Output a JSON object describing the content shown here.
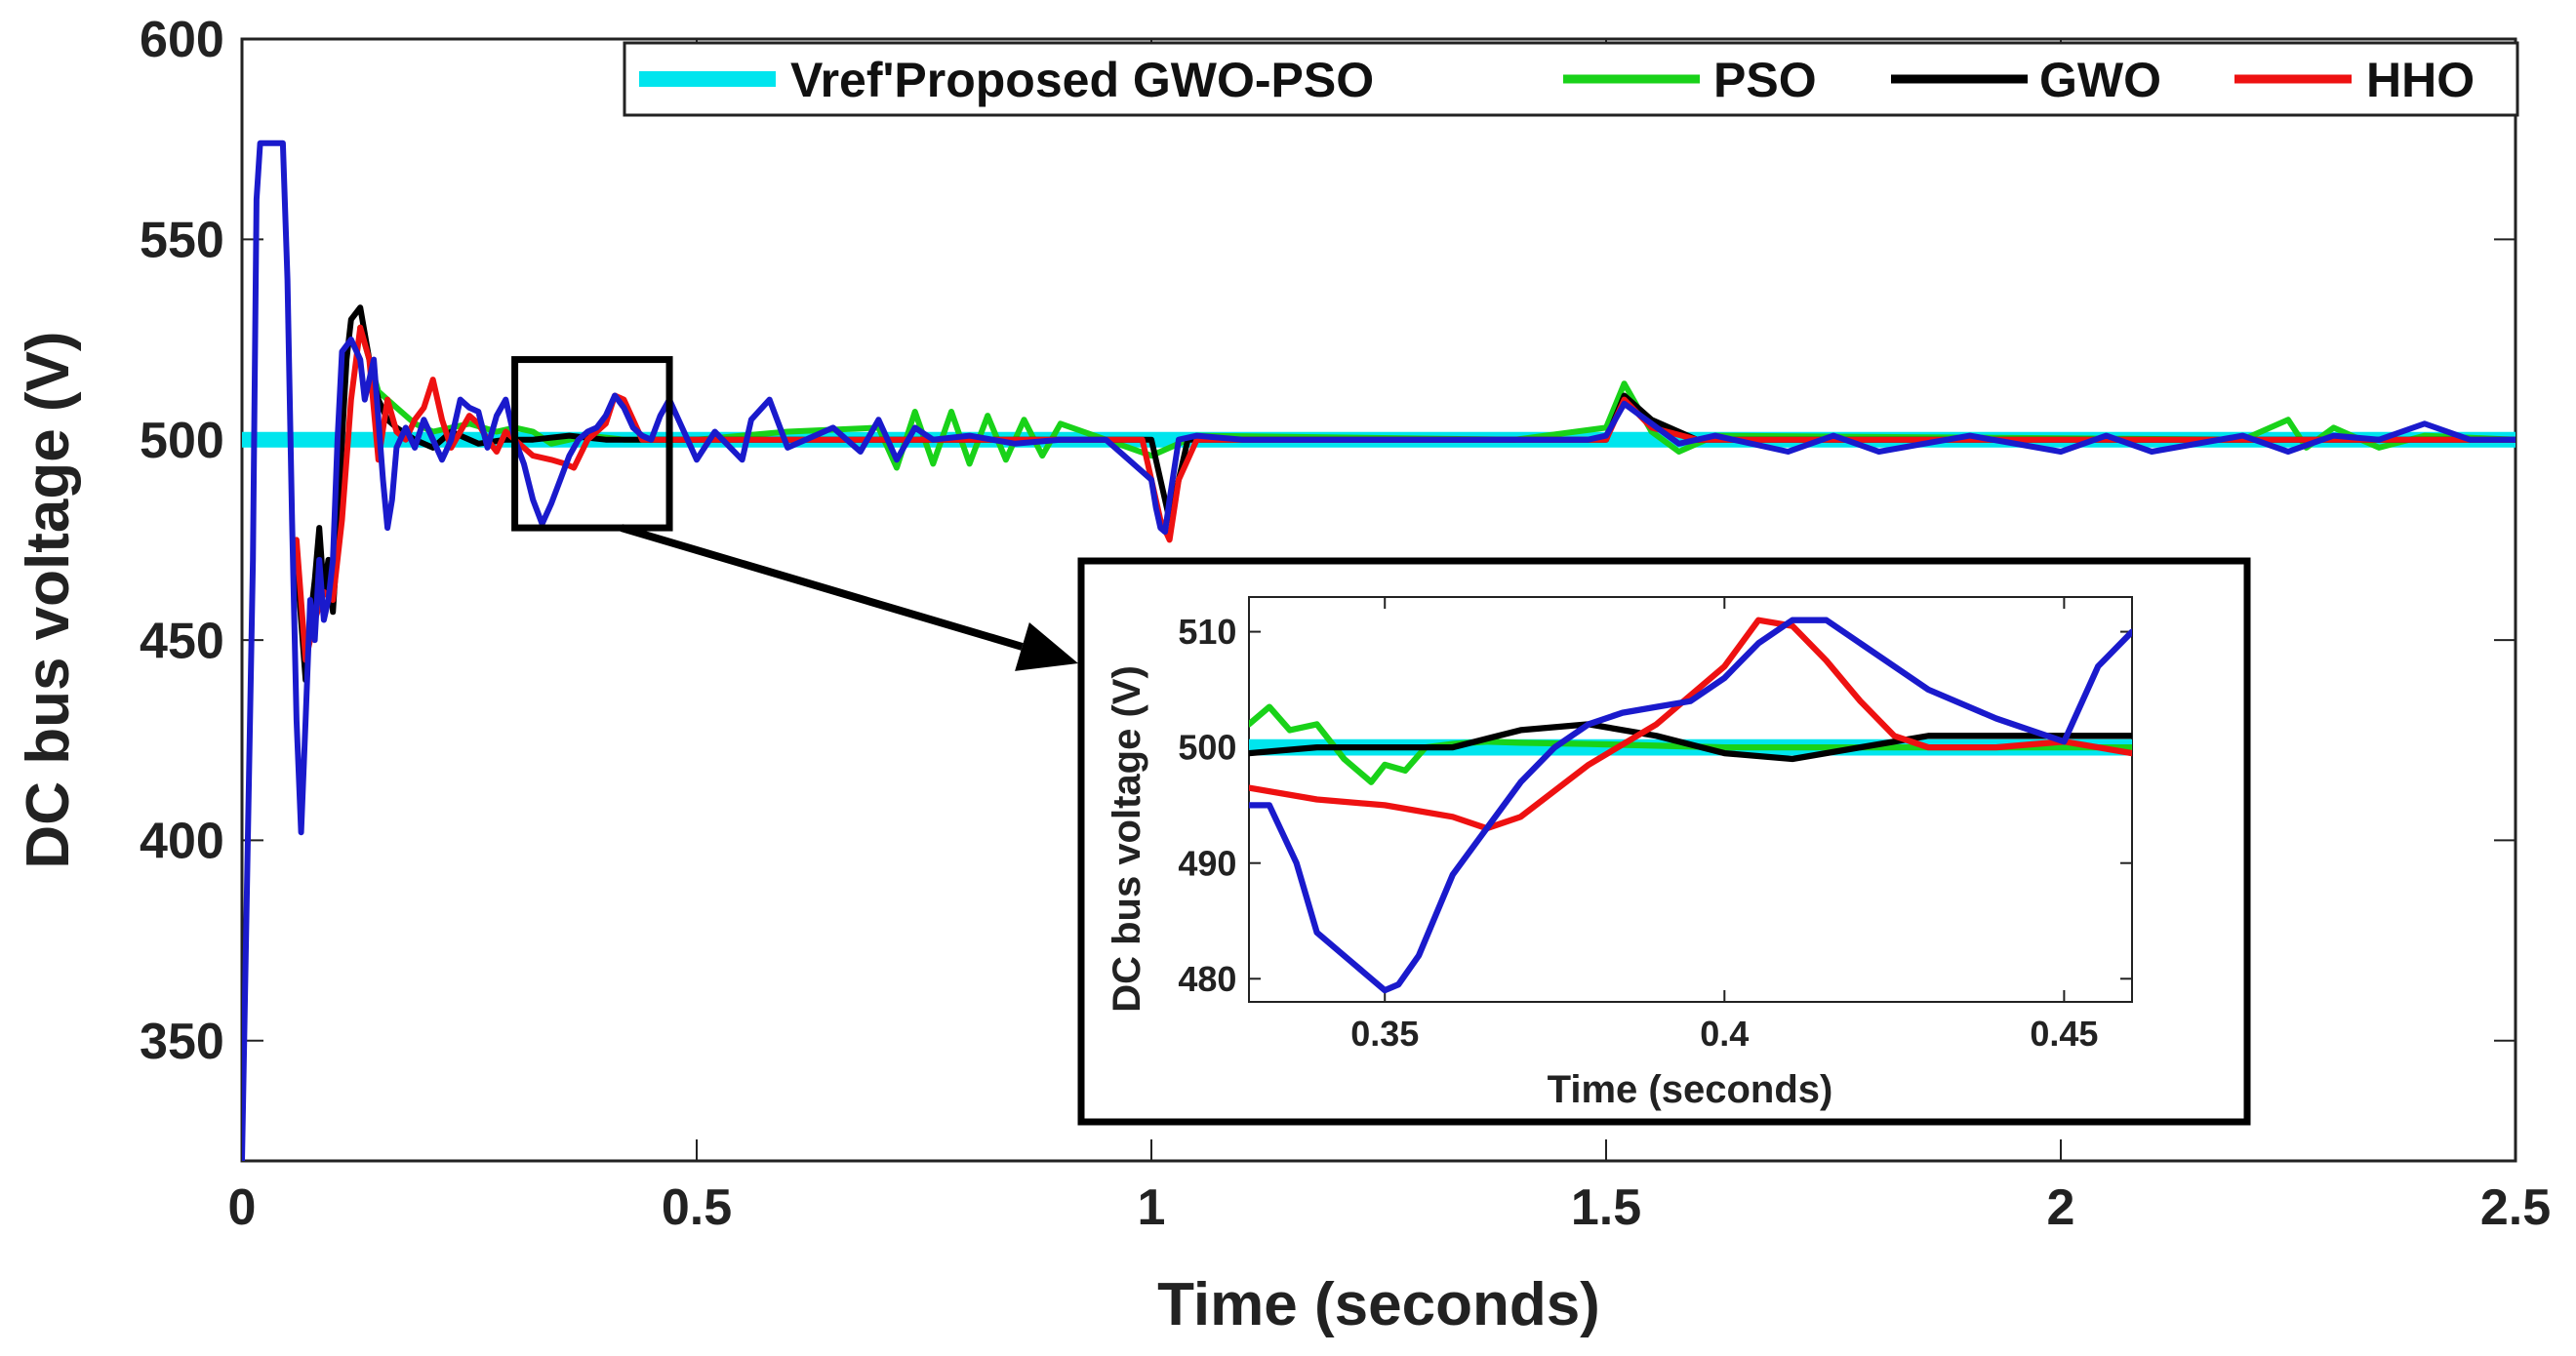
{
  "chart_data": {
    "type": "line",
    "xlabel": "Time (seconds)",
    "ylabel": "DC bus voltage (V)",
    "xlim": [
      0,
      2.5
    ],
    "ylim": [
      320,
      600
    ],
    "xticks": [
      0,
      0.5,
      1,
      1.5,
      2,
      2.5
    ],
    "xtick_labels": [
      "0",
      "0.5",
      "1",
      "1.5",
      "2",
      "2.5"
    ],
    "yticks": [
      350,
      400,
      450,
      500,
      550,
      600
    ],
    "ytick_labels": [
      "350",
      "400",
      "450",
      "500",
      "550",
      "600"
    ],
    "legend_position": "top-right",
    "legend": [
      "Vref'Proposed GWO-PSO",
      "PSO",
      "GWO",
      "HHO"
    ],
    "series": [
      {
        "name": "Vref",
        "color": "#00e5ee",
        "x": [
          0,
          2.5
        ],
        "y": [
          500,
          500
        ]
      },
      {
        "name": "PSO",
        "color": "#19d219",
        "x": [
          0.13,
          0.15,
          0.17,
          0.19,
          0.21,
          0.23,
          0.25,
          0.28,
          0.3,
          0.32,
          0.34,
          0.36,
          0.38,
          0.42,
          0.5,
          0.6,
          0.7,
          0.72,
          0.74,
          0.76,
          0.78,
          0.8,
          0.82,
          0.84,
          0.86,
          0.88,
          0.9,
          0.95,
          1.0,
          1.05,
          1.4,
          1.5,
          1.52,
          1.55,
          1.58,
          1.62,
          2.2,
          2.25,
          2.27,
          2.3,
          2.35,
          2.4,
          2.5
        ],
        "y": [
          528,
          512,
          508,
          504,
          502,
          503,
          504,
          502,
          503,
          502,
          499,
          500,
          501,
          500,
          500,
          502,
          503,
          493,
          507,
          494,
          507,
          494,
          506,
          495,
          505,
          496,
          504,
          500,
          496,
          501,
          500,
          503,
          514,
          502,
          497,
          501,
          500,
          505,
          498,
          503,
          498,
          501,
          500
        ]
      },
      {
        "name": "GWO",
        "color": "#000000",
        "x": [
          0.06,
          0.07,
          0.075,
          0.08,
          0.085,
          0.09,
          0.095,
          0.1,
          0.105,
          0.11,
          0.115,
          0.12,
          0.13,
          0.14,
          0.15,
          0.16,
          0.17,
          0.19,
          0.21,
          0.23,
          0.26,
          0.29,
          0.32,
          0.36,
          0.4,
          0.45,
          0.5,
          1.0,
          1.01,
          1.02,
          1.04,
          1.1,
          1.5,
          1.52,
          1.55,
          1.6,
          2.5
        ],
        "y": [
          470,
          440,
          455,
          465,
          478,
          462,
          470,
          457,
          475,
          500,
          520,
          530,
          533,
          520,
          510,
          505,
          503,
          500,
          498,
          502,
          499,
          500,
          500,
          501,
          500,
          500,
          500,
          500,
          490,
          480,
          500,
          500,
          500,
          511,
          505,
          500,
          500
        ]
      },
      {
        "name": "HHO",
        "color": "#ee1111",
        "x": [
          0.06,
          0.07,
          0.08,
          0.09,
          0.1,
          0.11,
          0.12,
          0.13,
          0.14,
          0.15,
          0.16,
          0.17,
          0.18,
          0.19,
          0.2,
          0.21,
          0.22,
          0.23,
          0.24,
          0.25,
          0.26,
          0.27,
          0.28,
          0.29,
          0.3,
          0.32,
          0.34,
          0.355,
          0.365,
          0.38,
          0.4,
          0.41,
          0.42,
          0.44,
          0.46,
          0.5,
          0.99,
          1.0,
          1.01,
          1.02,
          1.03,
          1.05,
          1.5,
          1.52,
          1.55,
          1.6,
          2.5
        ],
        "y": [
          475,
          445,
          455,
          462,
          460,
          480,
          510,
          528,
          520,
          495,
          510,
          502,
          500,
          505,
          508,
          515,
          505,
          498,
          502,
          506,
          504,
          500,
          497,
          502,
          500,
          496,
          495,
          494,
          493,
          500,
          504,
          511,
          510,
          500,
          500,
          500,
          500,
          490,
          480,
          475,
          490,
          500,
          500,
          510,
          503,
          500,
          500
        ]
      },
      {
        "name": "Proposed GWO-PSO",
        "color": "#1a1acc",
        "x": [
          0.0,
          0.012,
          0.016,
          0.02,
          0.03,
          0.045,
          0.05,
          0.055,
          0.06,
          0.065,
          0.07,
          0.075,
          0.08,
          0.085,
          0.09,
          0.095,
          0.1,
          0.105,
          0.11,
          0.12,
          0.13,
          0.135,
          0.14,
          0.145,
          0.15,
          0.155,
          0.16,
          0.165,
          0.17,
          0.18,
          0.19,
          0.2,
          0.21,
          0.22,
          0.23,
          0.24,
          0.25,
          0.26,
          0.27,
          0.28,
          0.29,
          0.3,
          0.31,
          0.32,
          0.33,
          0.34,
          0.35,
          0.36,
          0.37,
          0.38,
          0.39,
          0.4,
          0.41,
          0.42,
          0.43,
          0.44,
          0.45,
          0.46,
          0.47,
          0.5,
          0.52,
          0.55,
          0.56,
          0.58,
          0.6,
          0.65,
          0.68,
          0.7,
          0.72,
          0.74,
          0.76,
          0.8,
          0.85,
          0.9,
          0.95,
          1.0,
          1.005,
          1.01,
          1.015,
          1.02,
          1.03,
          1.05,
          1.1,
          1.2,
          1.3,
          1.4,
          1.48,
          1.5,
          1.52,
          1.55,
          1.58,
          1.62,
          1.7,
          1.75,
          1.8,
          1.9,
          2.0,
          2.05,
          2.1,
          2.2,
          2.25,
          2.3,
          2.35,
          2.4,
          2.45,
          2.5
        ],
        "y": [
          320,
          470,
          560,
          574,
          574,
          574,
          540,
          480,
          430,
          402,
          430,
          460,
          450,
          470,
          455,
          460,
          470,
          500,
          522,
          525,
          520,
          510,
          515,
          520,
          505,
          490,
          478,
          485,
          498,
          503,
          498,
          505,
          500,
          495,
          500,
          510,
          508,
          507,
          498,
          506,
          510,
          500,
          494,
          485,
          479,
          484,
          490,
          496,
          500,
          502,
          503,
          506,
          511,
          508,
          503,
          501,
          500,
          506,
          510,
          495,
          502,
          495,
          505,
          510,
          498,
          503,
          497,
          505,
          495,
          503,
          500,
          501,
          499,
          500,
          500,
          490,
          483,
          478,
          477,
          485,
          500,
          501,
          500,
          500,
          500,
          500,
          500,
          501,
          509,
          504,
          499,
          501,
          497,
          501,
          497,
          501,
          497,
          501,
          497,
          501,
          497,
          501,
          500,
          504,
          500,
          500
        ]
      }
    ],
    "inset": {
      "type": "line",
      "xlabel": "Time (seconds)",
      "ylabel": "DC bus voltage (V)",
      "xlim": [
        0.33,
        0.46
      ],
      "ylim": [
        478,
        513
      ],
      "xticks": [
        0.35,
        0.4,
        0.45
      ],
      "xtick_labels": [
        "0.35",
        "0.4",
        "0.45"
      ],
      "yticks": [
        480,
        490,
        500,
        510
      ],
      "ytick_labels": [
        "480",
        "490",
        "500",
        "510"
      ],
      "zoom_region": {
        "x": [
          0.3,
          0.47
        ],
        "y": [
          478,
          520
        ]
      },
      "series": [
        {
          "name": "Vref",
          "color": "#00e5ee",
          "x": [
            0.33,
            0.46
          ],
          "y": [
            500,
            500
          ]
        },
        {
          "name": "PSO",
          "color": "#19d219",
          "x": [
            0.33,
            0.333,
            0.336,
            0.34,
            0.344,
            0.348,
            0.35,
            0.353,
            0.356,
            0.36,
            0.365,
            0.37,
            0.38,
            0.4,
            0.43,
            0.46
          ],
          "y": [
            502,
            503.5,
            501.5,
            502,
            499,
            497,
            498.5,
            498,
            500,
            500.3,
            500.5,
            500.4,
            500.3,
            500,
            500,
            500
          ]
        },
        {
          "name": "GWO",
          "color": "#000000",
          "x": [
            0.33,
            0.34,
            0.35,
            0.36,
            0.37,
            0.38,
            0.39,
            0.4,
            0.41,
            0.42,
            0.43,
            0.44,
            0.45,
            0.46
          ],
          "y": [
            499.5,
            500,
            500,
            500,
            501.5,
            502,
            501,
            499.5,
            499,
            500,
            501,
            501,
            501,
            501
          ]
        },
        {
          "name": "HHO",
          "color": "#ee1111",
          "x": [
            0.33,
            0.34,
            0.35,
            0.36,
            0.365,
            0.37,
            0.38,
            0.39,
            0.4,
            0.405,
            0.41,
            0.415,
            0.42,
            0.425,
            0.43,
            0.44,
            0.45,
            0.46
          ],
          "y": [
            496.5,
            495.5,
            495,
            494,
            493,
            494,
            498.5,
            502,
            507,
            511,
            510.5,
            507.5,
            504,
            501,
            500,
            500,
            500.5,
            499.5
          ]
        },
        {
          "name": "Proposed GWO-PSO",
          "color": "#1a1acc",
          "x": [
            0.33,
            0.333,
            0.337,
            0.34,
            0.345,
            0.35,
            0.352,
            0.355,
            0.36,
            0.365,
            0.37,
            0.375,
            0.38,
            0.385,
            0.39,
            0.395,
            0.4,
            0.405,
            0.41,
            0.415,
            0.42,
            0.43,
            0.44,
            0.45,
            0.455,
            0.46
          ],
          "y": [
            495,
            495,
            490,
            484,
            481.5,
            479,
            479.5,
            482,
            489,
            493,
            497,
            500,
            502,
            503,
            503.5,
            504,
            506,
            509,
            511,
            511,
            509,
            505,
            502.5,
            500.5,
            507,
            510
          ]
        }
      ]
    }
  }
}
